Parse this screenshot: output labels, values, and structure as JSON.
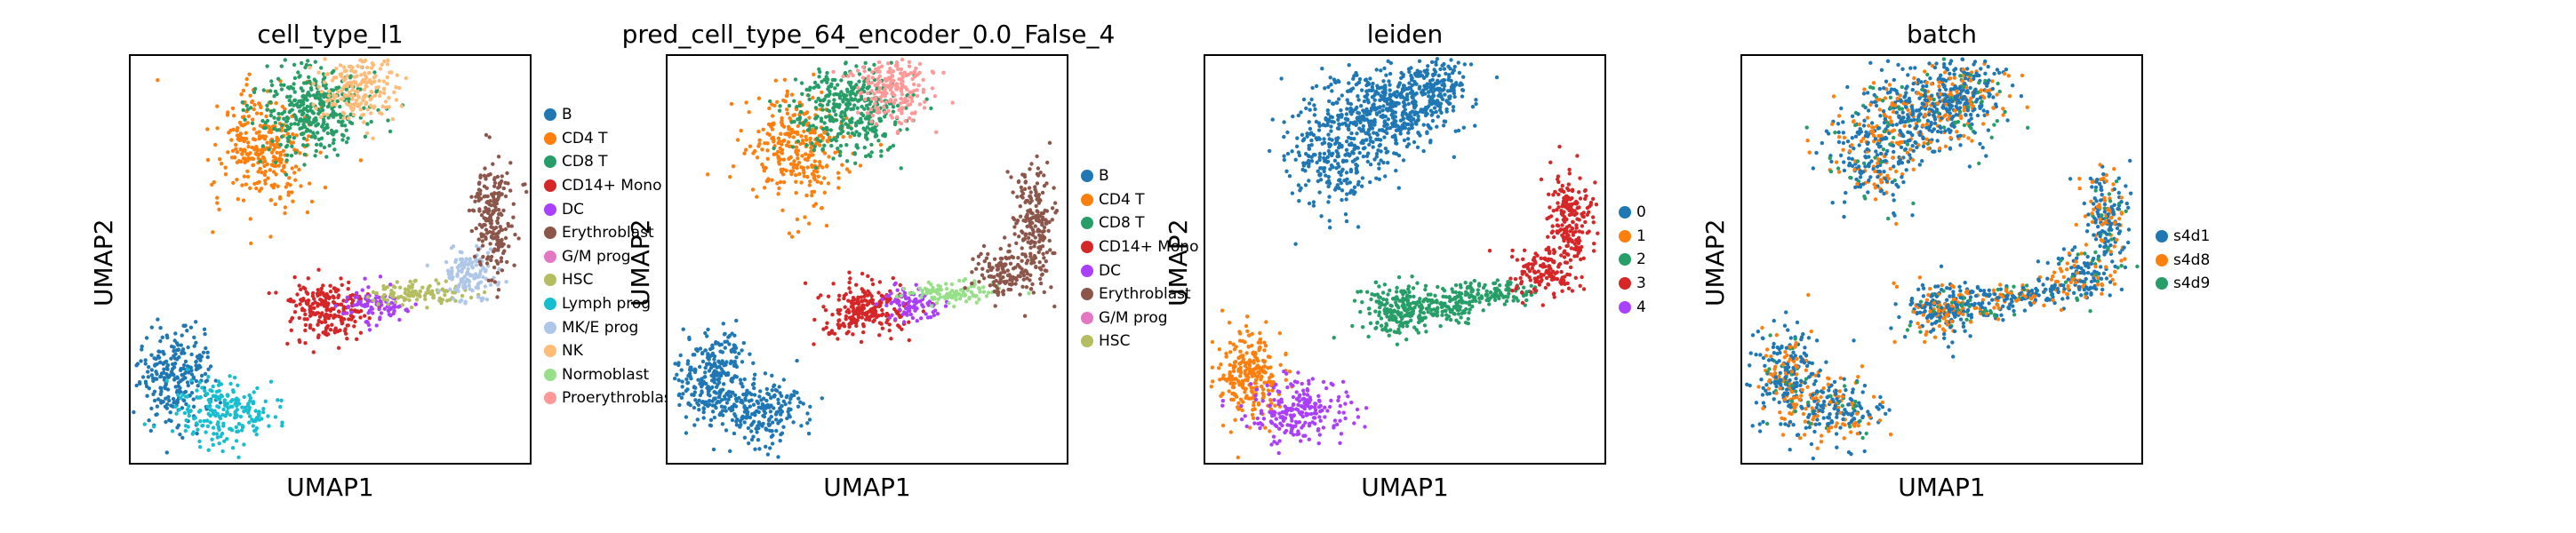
{
  "chart_data": [
    {
      "type": "scatter",
      "title": "cell_type_l1",
      "xlabel": "UMAP1",
      "ylabel": "UMAP2",
      "legend": "right",
      "categories": [
        {
          "name": "B",
          "color": "#1f77b4"
        },
        {
          "name": "CD4 T",
          "color": "#ff7f0e"
        },
        {
          "name": "CD8 T",
          "color": "#279e68"
        },
        {
          "name": "CD14+ Mono",
          "color": "#d62728"
        },
        {
          "name": "DC",
          "color": "#aa40fc"
        },
        {
          "name": "Erythroblast",
          "color": "#8c564b"
        },
        {
          "name": "G/M prog",
          "color": "#e377c2"
        },
        {
          "name": "HSC",
          "color": "#b5bd61"
        },
        {
          "name": "Lymph prog",
          "color": "#17becf"
        },
        {
          "name": "MK/E prog",
          "color": "#aec7e8"
        },
        {
          "name": "NK",
          "color": "#ffbb78"
        },
        {
          "name": "Normoblast",
          "color": "#98df8a"
        },
        {
          "name": "Proerythroblast",
          "color": "#ff9896"
        }
      ]
    },
    {
      "type": "scatter",
      "title": "pred_cell_type_64_encoder_0.0_False_4",
      "xlabel": "UMAP1",
      "ylabel": "UMAP2",
      "legend": "right",
      "categories": [
        {
          "name": "B",
          "color": "#1f77b4"
        },
        {
          "name": "CD4 T",
          "color": "#ff7f0e"
        },
        {
          "name": "CD8 T",
          "color": "#279e68"
        },
        {
          "name": "CD14+ Mono",
          "color": "#d62728"
        },
        {
          "name": "DC",
          "color": "#aa40fc"
        },
        {
          "name": "Erythroblast",
          "color": "#8c564b"
        },
        {
          "name": "G/M prog",
          "color": "#e377c2"
        },
        {
          "name": "HSC",
          "color": "#b5bd61"
        }
      ]
    },
    {
      "type": "scatter",
      "title": "leiden",
      "xlabel": "UMAP1",
      "ylabel": "UMAP2",
      "legend": "right",
      "categories": [
        {
          "name": "0",
          "color": "#1f77b4"
        },
        {
          "name": "1",
          "color": "#ff7f0e"
        },
        {
          "name": "2",
          "color": "#279e68"
        },
        {
          "name": "3",
          "color": "#d62728"
        },
        {
          "name": "4",
          "color": "#aa40fc"
        }
      ]
    },
    {
      "type": "scatter",
      "title": "batch",
      "xlabel": "UMAP1",
      "ylabel": "UMAP2",
      "legend": "right",
      "categories": [
        {
          "name": "s4d1",
          "color": "#1f77b4"
        },
        {
          "name": "s4d8",
          "color": "#ff7f0e"
        },
        {
          "name": "s4d9",
          "color": "#279e68"
        }
      ]
    }
  ]
}
